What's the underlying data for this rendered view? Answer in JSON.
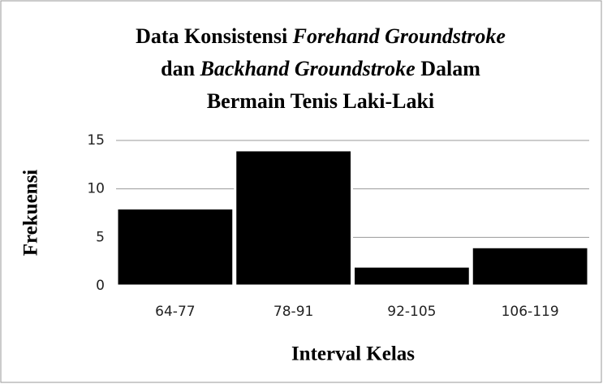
{
  "chart_data": {
    "type": "bar",
    "title": [
      [
        {
          "text": "Data Konsistensi "
        },
        {
          "text": "Forehand Groundstroke",
          "italic": true
        }
      ],
      [
        {
          "text": "dan "
        },
        {
          "text": "Backhand Groundstroke",
          "italic": true
        },
        {
          "text": " Dalam"
        }
      ],
      [
        {
          "text": "Bermain Tenis Laki-Laki"
        }
      ]
    ],
    "x_label": "Interval Kelas",
    "y_label": "Frekuensi",
    "categories": [
      "64-77",
      "78-91",
      "92-105",
      "106-119"
    ],
    "values": [
      8,
      14,
      2,
      4
    ],
    "color": "#000000",
    "ylim": [
      0,
      15
    ],
    "yticks": [
      0,
      5,
      10,
      15
    ],
    "grid": true
  }
}
